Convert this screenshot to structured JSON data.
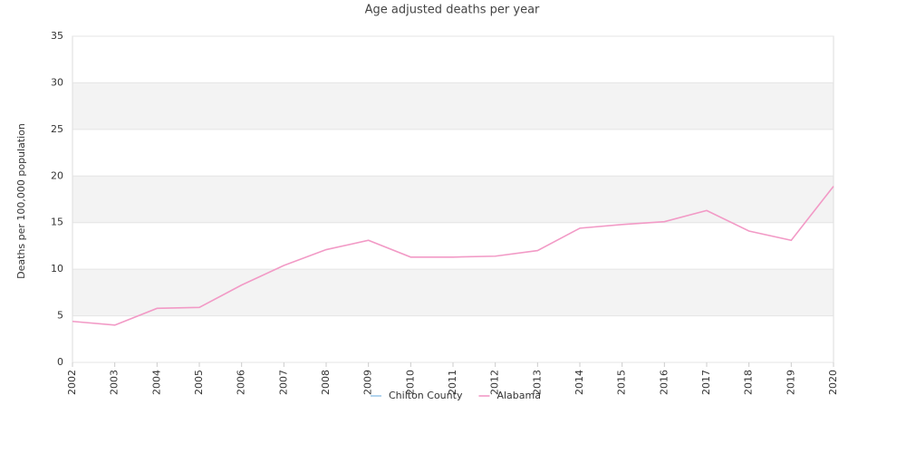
{
  "chart_data": {
    "type": "line",
    "title": "Age adjusted deaths per year",
    "y_label": "Deaths per 100,000 population",
    "categories": [
      "2002",
      "2003",
      "2004",
      "2005",
      "2006",
      "2007",
      "2008",
      "2009",
      "2010",
      "2011",
      "2012",
      "2013",
      "2014",
      "2015",
      "2016",
      "2017",
      "2018",
      "2019",
      "2020"
    ],
    "series": [
      {
        "name": "Chilton County",
        "color": "#9ecae9",
        "values": [
          null,
          null,
          null,
          null,
          null,
          null,
          null,
          null,
          null,
          null,
          null,
          null,
          null,
          null,
          null,
          null,
          null,
          null,
          null
        ]
      },
      {
        "name": "Alabama",
        "color": "#f29ac6",
        "values": [
          4.4,
          4.0,
          5.8,
          5.9,
          8.3,
          10.4,
          12.1,
          13.1,
          11.3,
          11.3,
          11.4,
          12.0,
          14.4,
          14.8,
          15.1,
          16.3,
          14.1,
          13.1,
          18.9
        ]
      }
    ],
    "ylim": [
      0,
      35
    ],
    "yticks": [
      0,
      5,
      10,
      15,
      20,
      25,
      30,
      35
    ],
    "grid": true,
    "legend": "bottom"
  }
}
